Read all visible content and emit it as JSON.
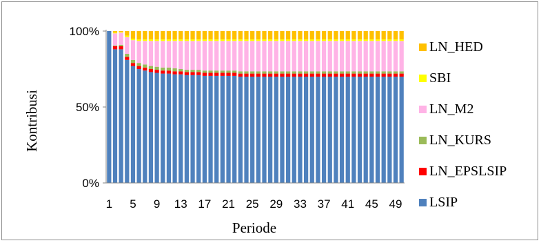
{
  "chart_data": {
    "type": "bar",
    "stacked": "percent",
    "xlabel": "Periode",
    "ylabel": "Kontribusi",
    "ylim": [
      0,
      100
    ],
    "y_ticks": [
      "0%",
      "50%",
      "100%"
    ],
    "x_tick_labels": [
      "1",
      "5",
      "9",
      "13",
      "17",
      "21",
      "25",
      "29",
      "33",
      "37",
      "41",
      "45",
      "49"
    ],
    "grid": false,
    "legend_position": "right",
    "categories": [
      1,
      2,
      3,
      4,
      5,
      6,
      7,
      8,
      9,
      10,
      11,
      12,
      13,
      14,
      15,
      16,
      17,
      18,
      19,
      20,
      21,
      22,
      23,
      24,
      25,
      26,
      27,
      28,
      29,
      30,
      31,
      32,
      33,
      34,
      35,
      36,
      37,
      38,
      39,
      40,
      41,
      42,
      43,
      44,
      45,
      46,
      47,
      48,
      49,
      50
    ],
    "series": [
      {
        "name": "LSIP",
        "color": "#4F81BD",
        "values": [
          100,
          88,
          88,
          81,
          77,
          75,
          74,
          73,
          72.5,
          72,
          72,
          71.5,
          71.5,
          71,
          71,
          71,
          70.5,
          70.5,
          70.5,
          70.5,
          70.5,
          70.5,
          70,
          70,
          70,
          70,
          70,
          70,
          70,
          70,
          70,
          70,
          70,
          70,
          70,
          70,
          70,
          70,
          70,
          70,
          70,
          70,
          70,
          70,
          70,
          70,
          70,
          70,
          70,
          70
        ]
      },
      {
        "name": "LN_EPSLSIP",
        "color": "#FF0000",
        "values": [
          0,
          2,
          2,
          2,
          2,
          2,
          2,
          2,
          2,
          2,
          2,
          2,
          2,
          2,
          2,
          2,
          2,
          2,
          2,
          2,
          2,
          2,
          2,
          2,
          2,
          2,
          2,
          2,
          2,
          2,
          2,
          2,
          2,
          2,
          2,
          2,
          2,
          2,
          2,
          2,
          2,
          2,
          2,
          2,
          2,
          2,
          2,
          2,
          2,
          2
        ]
      },
      {
        "name": "LN_KURS",
        "color": "#9BBB59",
        "values": [
          0,
          0.5,
          1,
          2,
          2,
          2,
          2,
          2,
          2,
          2,
          2,
          2,
          1.5,
          1.5,
          1.5,
          1.5,
          1.5,
          1.5,
          1.5,
          1.5,
          1.5,
          1.5,
          1.5,
          1.5,
          1.5,
          1.5,
          1.5,
          1.5,
          1.5,
          1.5,
          1.5,
          1.5,
          1.5,
          1.5,
          1.5,
          1.5,
          1.5,
          1.5,
          1.5,
          1.5,
          1.5,
          1.5,
          1.5,
          1.5,
          1.5,
          1.5,
          1.5,
          1.5,
          1.5,
          1.5
        ]
      },
      {
        "name": "LN_M2",
        "color": "#FFB3E6",
        "values": [
          0,
          8,
          8,
          11,
          13,
          14.5,
          15.5,
          16.5,
          17,
          17.5,
          17.5,
          18,
          18.5,
          19,
          19,
          19,
          19.5,
          19.5,
          19.5,
          19.5,
          19.5,
          19.5,
          20,
          20,
          20,
          20,
          20,
          20,
          20,
          20,
          20,
          20,
          20,
          20,
          20,
          20,
          20,
          20,
          20,
          20,
          20,
          20,
          20,
          20,
          20,
          20,
          20,
          20,
          20,
          20
        ]
      },
      {
        "name": "SBI",
        "color": "#FFFF00",
        "values": [
          0,
          0.5,
          0.5,
          1,
          1,
          1,
          1,
          1,
          1,
          1,
          1,
          1,
          1,
          1,
          1,
          1,
          1,
          1,
          1,
          1,
          1,
          1,
          1,
          1,
          1,
          1,
          1,
          1,
          1,
          1,
          1,
          1,
          1,
          1,
          1,
          1,
          1,
          1,
          1,
          1,
          1,
          1,
          1,
          1,
          1,
          1,
          1,
          1,
          1,
          1
        ]
      },
      {
        "name": "LN_HED",
        "color": "#FFC000",
        "values": [
          0,
          1,
          0.5,
          3,
          5,
          5.5,
          5.5,
          5.5,
          5.5,
          5.5,
          5.5,
          5.5,
          5.5,
          5.5,
          5.5,
          5.5,
          5.5,
          5.5,
          5.5,
          5.5,
          5.5,
          5.5,
          5.5,
          5.5,
          5.5,
          5.5,
          5.5,
          5.5,
          5.5,
          5.5,
          5.5,
          5.5,
          5.5,
          5.5,
          5.5,
          5.5,
          5.5,
          5.5,
          5.5,
          5.5,
          5.5,
          5.5,
          5.5,
          5.5,
          5.5,
          5.5,
          5.5,
          5.5,
          5.5,
          5.5
        ]
      }
    ]
  }
}
